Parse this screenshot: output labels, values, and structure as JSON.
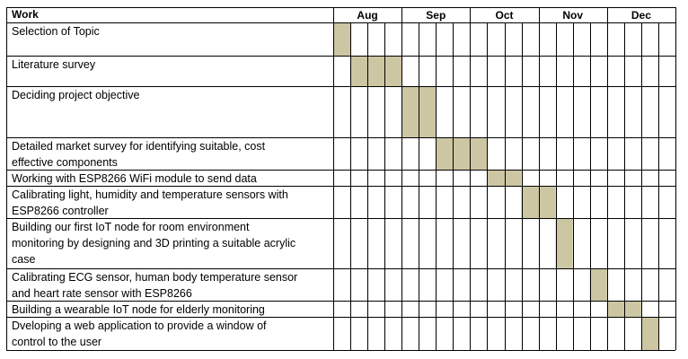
{
  "table": {
    "work_header": "Work",
    "months": [
      "Aug",
      "Sep",
      "Oct",
      "Nov",
      "Dec"
    ],
    "weeks_per_month": 4,
    "bar_color": "#CCC6A3",
    "rows": [
      {
        "lines": [
          "Selection of Topic"
        ],
        "start_week": 0,
        "weeks": 1
      },
      {
        "lines": [
          "Literature survey"
        ],
        "start_week": 1,
        "weeks": 3
      },
      {
        "lines": [
          "Deciding project objective"
        ],
        "start_week": 4,
        "weeks": 2
      },
      {
        "lines": [
          "Detailed market survey for identifying suitable, cost",
          "effective components"
        ],
        "start_week": 6,
        "weeks": 3
      },
      {
        "lines": [
          "Working with ESP8266 WiFi module to send data"
        ],
        "start_week": 9,
        "weeks": 2
      },
      {
        "lines": [
          "Calibrating light, humidity and temperature sensors with",
          "ESP8266 controller"
        ],
        "start_week": 11,
        "weeks": 2
      },
      {
        "lines": [
          "Building our first IoT node for room environment",
          "monitoring by designing and 3D printing a suitable acrylic",
          "case"
        ],
        "start_week": 13,
        "weeks": 1
      },
      {
        "lines": [
          "Calibrating ECG sensor, human body temperature sensor",
          "and heart rate sensor with ESP8266"
        ],
        "start_week": 15,
        "weeks": 1
      },
      {
        "lines": [
          "Building a wearable IoT node for elderly monitoring"
        ],
        "start_week": 16,
        "weeks": 2
      },
      {
        "lines": [
          "Dveloping a web application to provide a window of",
          "control to the user"
        ],
        "start_week": 18,
        "weeks": 1
      }
    ]
  }
}
